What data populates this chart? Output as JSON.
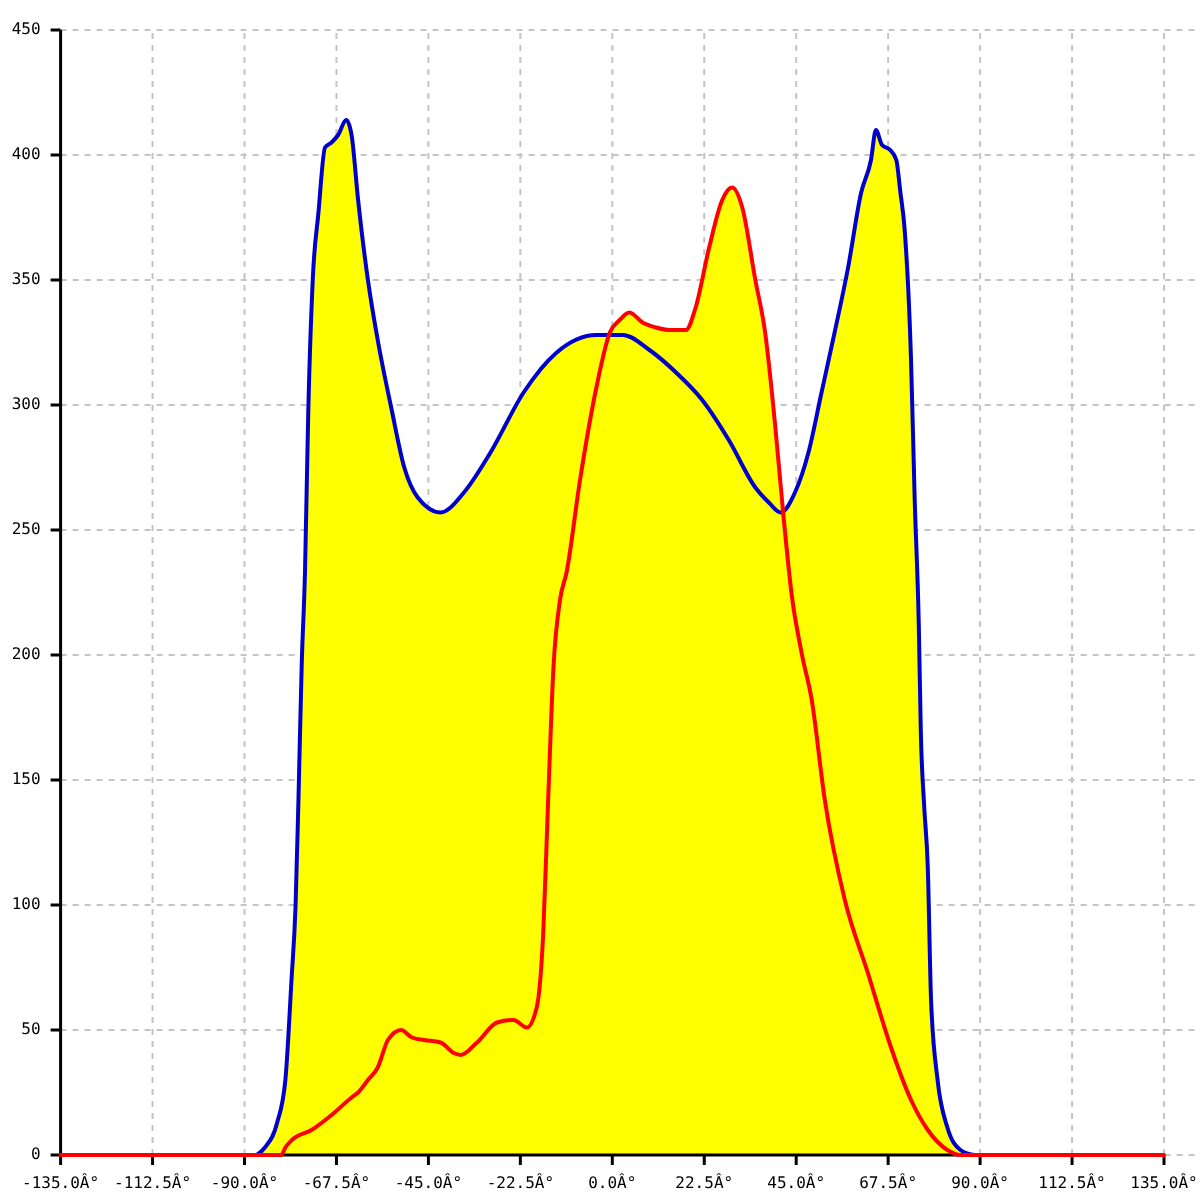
{
  "chart_data": {
    "type": "line",
    "xlim": [
      -135,
      135
    ],
    "xticks": [
      {
        "value": -135,
        "label": "-135.0Â°"
      },
      {
        "value": -112.5,
        "label": "-112.5Â°"
      },
      {
        "value": -90,
        "label": "-90.0Â°"
      },
      {
        "value": -67.5,
        "label": "-67.5Â°"
      },
      {
        "value": -45,
        "label": "-45.0Â°"
      },
      {
        "value": -22.5,
        "label": "-22.5Â°"
      },
      {
        "value": 0,
        "label": "0.0Â°"
      },
      {
        "value": 22.5,
        "label": "22.5Â°"
      },
      {
        "value": 45,
        "label": "45.0Â°"
      },
      {
        "value": 67.5,
        "label": "67.5Â°"
      },
      {
        "value": 90,
        "label": "90.0Â°"
      },
      {
        "value": 112.5,
        "label": "112.5Â°"
      },
      {
        "value": 135,
        "label": "135.0Â°"
      }
    ],
    "ylim": [
      0,
      450
    ],
    "yticks": [
      0,
      50,
      100,
      150,
      200,
      250,
      300,
      350,
      400,
      450
    ],
    "grid": true,
    "series": [
      {
        "type": "area",
        "color": "#ffff00",
        "x": [
          -135,
          -87,
          -85,
          -82,
          -80,
          -78.5,
          -77.5,
          -76.8,
          -76,
          -75.2,
          -74.4,
          -73.3,
          -71.9,
          -70.3,
          -68.7,
          -67.1,
          -65.1,
          -63.8,
          -62.2,
          -59.8,
          -57.4,
          -54.1,
          -50.9,
          -47.6,
          -42,
          -36.3,
          -29.8,
          -21.7,
          -13.6,
          -3.9,
          0,
          1.8,
          4.2,
          7.4,
          10.7,
          14,
          18,
          20.4,
          23.7,
          26.9,
          29.3,
          31.8,
          35,
          37.4,
          39.9,
          41.5,
          44.7,
          48,
          51.2,
          54.4,
          57.7,
          60.9,
          63.3,
          64.5,
          66,
          68,
          69.5,
          70.5,
          71.5,
          73.1,
          74,
          75,
          75.5,
          76.3,
          77.2,
          78,
          79.6,
          82,
          85.2,
          88.5,
          135
        ],
        "values": [
          0,
          0,
          3,
          13,
          30,
          70,
          100,
          142,
          196,
          233,
          297,
          350,
          377,
          403,
          405,
          408,
          414,
          408,
          382,
          350,
          326,
          299,
          275,
          263,
          257,
          265,
          281,
          305,
          321,
          328,
          329,
          334,
          337,
          333,
          331,
          330,
          330,
          339,
          363,
          382,
          387,
          379,
          350,
          329,
          291,
          257,
          265,
          281,
          305,
          329,
          355,
          385,
          398,
          410,
          404,
          402,
          398,
          385,
          371,
          318,
          262,
          212,
          169,
          140,
          115,
          62,
          30,
          11,
          2,
          0,
          0
        ]
      },
      {
        "color": "#0000cc",
        "x": [
          -87,
          -85,
          -82,
          -80,
          -78.5,
          -77.5,
          -76.8,
          -76,
          -75.2,
          -74.4,
          -73.3,
          -71.9,
          -70.3,
          -68.7,
          -67.1,
          -65.1,
          -63.8,
          -62.2,
          -59.8,
          -57.4,
          -54.1,
          -50.9,
          -47.6,
          -42,
          -36.3,
          -29.8,
          -21.7,
          -13.6,
          -3.9,
          2.6,
          9.1,
          15.6,
          22,
          28.5,
          35,
          38.3,
          41.2,
          44.7,
          48,
          51.2,
          54.4,
          57.7,
          60.9,
          63.3,
          64.5,
          66,
          68,
          69.5,
          70.5,
          71.5,
          73.1,
          74,
          75,
          75.5,
          76.3,
          77.2,
          78,
          79.6,
          82,
          85.2,
          88.5
        ],
        "values": [
          0,
          3,
          13,
          30,
          70,
          100,
          142,
          196,
          233,
          297,
          350,
          377,
          403,
          405,
          408,
          414,
          408,
          382,
          350,
          326,
          299,
          275,
          263,
          257,
          265,
          281,
          305,
          321,
          328,
          328,
          322,
          313,
          302,
          286,
          267,
          261,
          257,
          265,
          281,
          305,
          329,
          355,
          385,
          398,
          410,
          404,
          402,
          398,
          385,
          371,
          318,
          262,
          212,
          169,
          140,
          115,
          62,
          30,
          11,
          2,
          0
        ]
      },
      {
        "color": "#ff0000",
        "x": [
          -135,
          -81,
          -80,
          -78.4,
          -73.6,
          -68.7,
          -63.8,
          -62.2,
          -59.8,
          -57.4,
          -54.9,
          -51.7,
          -49,
          -46,
          -42,
          -39,
          -37.1,
          -33.1,
          -28.2,
          -24.2,
          -20.9,
          -18.5,
          -16.9,
          -15.7,
          -14.4,
          -12.8,
          -11.2,
          -7.9,
          -3.9,
          -0.6,
          1.8,
          4.2,
          7.4,
          10.7,
          14,
          18,
          20.4,
          23.7,
          26.9,
          29.3,
          31.8,
          35,
          37.4,
          39.9,
          41.8,
          43.9,
          46.3,
          48.8,
          52,
          56.9,
          62.5,
          68.2,
          73.1,
          77.2,
          82,
          85.2,
          135
        ],
        "values": [
          0,
          0,
          3,
          6,
          10,
          16,
          23,
          25,
          30,
          35,
          46,
          50,
          47,
          46,
          45,
          41,
          40,
          45,
          53,
          54,
          51,
          59,
          89,
          142,
          195,
          222,
          233,
          270,
          307,
          329,
          334,
          337,
          333,
          331,
          330,
          330,
          339,
          363,
          382,
          387,
          379,
          350,
          329,
          291,
          257,
          224,
          201,
          182,
          142,
          102,
          73,
          43,
          22,
          10,
          2,
          0,
          0
        ]
      }
    ]
  }
}
